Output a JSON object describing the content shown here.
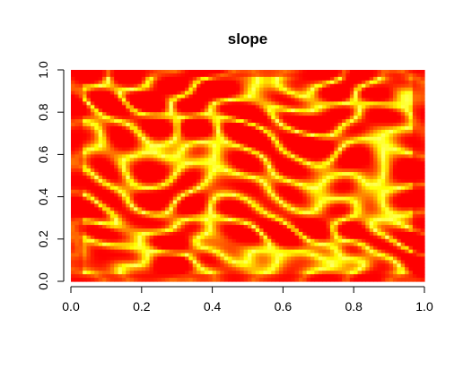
{
  "chart_data": {
    "type": "heatmap",
    "title": "slope",
    "xlabel": "",
    "ylabel": "",
    "xlim": [
      0,
      1
    ],
    "ylim": [
      0,
      1
    ],
    "x_ticks": [
      "0.0",
      "0.2",
      "0.4",
      "0.6",
      "0.8",
      "1.0"
    ],
    "y_ticks": [
      "0.0",
      "0.2",
      "0.4",
      "0.6",
      "0.8",
      "1.0"
    ],
    "grid": false,
    "legend": "none",
    "colormap": [
      "#ff0000",
      "#ff4000",
      "#ff8000",
      "#ffbf00",
      "#ffff00",
      "#ffff66"
    ],
    "value_range": [
      0,
      1
    ]
  }
}
